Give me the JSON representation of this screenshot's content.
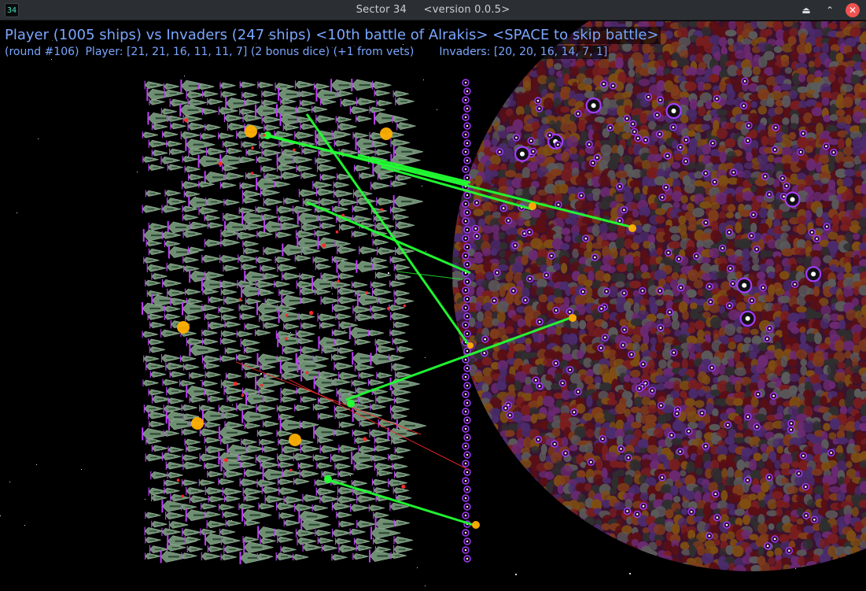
{
  "window": {
    "app_icon": "34",
    "title": "Sector 34",
    "version": "<version 0.0.5>",
    "controls": {
      "minimize_icon": "eject-icon",
      "maximize_icon": "chevron-up-icon",
      "close_icon": "close-icon"
    }
  },
  "battle": {
    "headline": "Player (1005 ships) vs Invaders (247 ships) <10th battle of Alrakis> <SPACE to skip battle>",
    "round": "(round #106)",
    "player_line": "Player: [21, 21, 16, 11, 11, 7] (2 bonus dice) (+1 from vets)",
    "invaders_line": "Invaders: [20, 20, 16, 14, 7, 1]"
  },
  "colors": {
    "background": "#000000",
    "player_ship": "#6f8f72",
    "player_edge": "#c23cff",
    "invader_blob": "#a33cff",
    "laser": "#22ff33",
    "explosion": "#ffb000",
    "red_shot": "#ff2a2a",
    "invader_palette": [
      "#7a1e1e",
      "#5a0f14",
      "#7f4e12",
      "#4b2c6d",
      "#5b5b5b",
      "#2f2f2f",
      "#6c2a73",
      "#803c1a"
    ]
  }
}
